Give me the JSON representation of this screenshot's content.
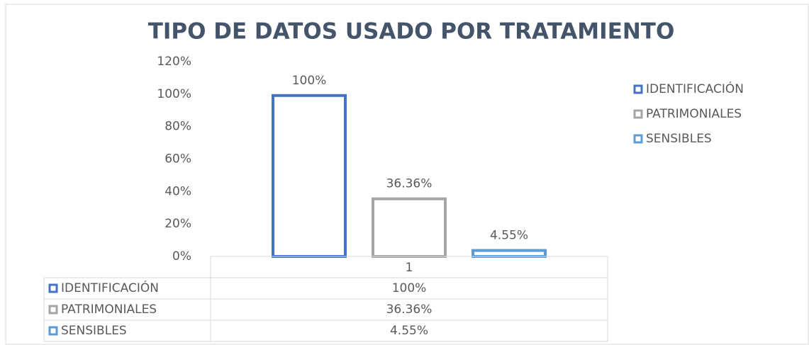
{
  "chart_data": {
    "type": "bar",
    "title": "TIPO DE DATOS USADO POR TRATAMIENTO",
    "categories": [
      "1"
    ],
    "series": [
      {
        "name": "IDENTIFICACIÓN",
        "color": "#4472c4",
        "values": [
          100
        ],
        "value_labels": [
          "100%"
        ]
      },
      {
        "name": "PATRIMONIALES",
        "color": "#a5a5a5",
        "values": [
          36.36
        ],
        "value_labels": [
          "36.36%"
        ]
      },
      {
        "name": "SENSIBLES",
        "color": "#5b9bd5",
        "values": [
          4.55
        ],
        "value_labels": [
          "4.55%"
        ]
      }
    ],
    "ylim": [
      0,
      120
    ],
    "yticks": [
      {
        "value": 0,
        "label": "0%"
      },
      {
        "value": 20,
        "label": "20%"
      },
      {
        "value": 40,
        "label": "40%"
      },
      {
        "value": 60,
        "label": "60%"
      },
      {
        "value": 80,
        "label": "80%"
      },
      {
        "value": 100,
        "label": "100%"
      },
      {
        "value": 120,
        "label": "120%"
      }
    ],
    "grid": false,
    "legend": "right",
    "data_table": true
  }
}
